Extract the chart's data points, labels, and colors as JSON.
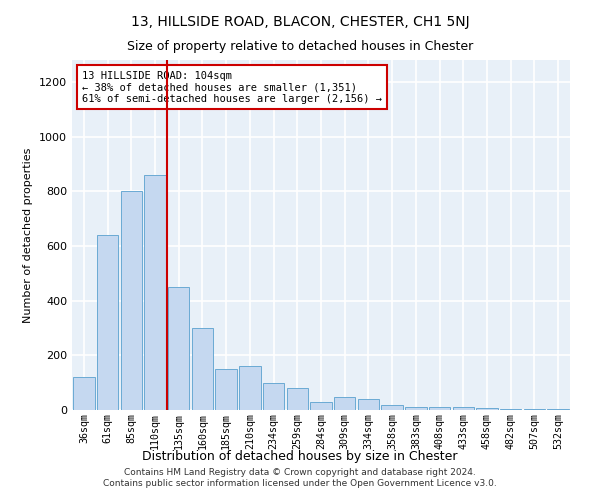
{
  "title": "13, HILLSIDE ROAD, BLACON, CHESTER, CH1 5NJ",
  "subtitle": "Size of property relative to detached houses in Chester",
  "xlabel": "Distribution of detached houses by size in Chester",
  "ylabel": "Number of detached properties",
  "bar_color": "#c5d8f0",
  "bar_edge_color": "#6aaad4",
  "background_color": "#e8f0f8",
  "grid_color": "#ffffff",
  "annotation_box_color": "#cc0000",
  "vline_color": "#cc0000",
  "categories": [
    "36sqm",
    "61sqm",
    "85sqm",
    "110sqm",
    "135sqm",
    "160sqm",
    "185sqm",
    "210sqm",
    "234sqm",
    "259sqm",
    "284sqm",
    "309sqm",
    "334sqm",
    "358sqm",
    "383sqm",
    "408sqm",
    "433sqm",
    "458sqm",
    "482sqm",
    "507sqm",
    "532sqm"
  ],
  "values": [
    120,
    640,
    800,
    860,
    450,
    300,
    150,
    160,
    100,
    80,
    30,
    47,
    42,
    18,
    12,
    10,
    10,
    9,
    5,
    4,
    4
  ],
  "ylim": [
    0,
    1280
  ],
  "yticks": [
    0,
    200,
    400,
    600,
    800,
    1000,
    1200
  ],
  "vline_pos": 3.5,
  "annotation_text": "13 HILLSIDE ROAD: 104sqm\n← 38% of detached houses are smaller (1,351)\n61% of semi-detached houses are larger (2,156) →",
  "footer_line1": "Contains HM Land Registry data © Crown copyright and database right 2024.",
  "footer_line2": "Contains public sector information licensed under the Open Government Licence v3.0."
}
